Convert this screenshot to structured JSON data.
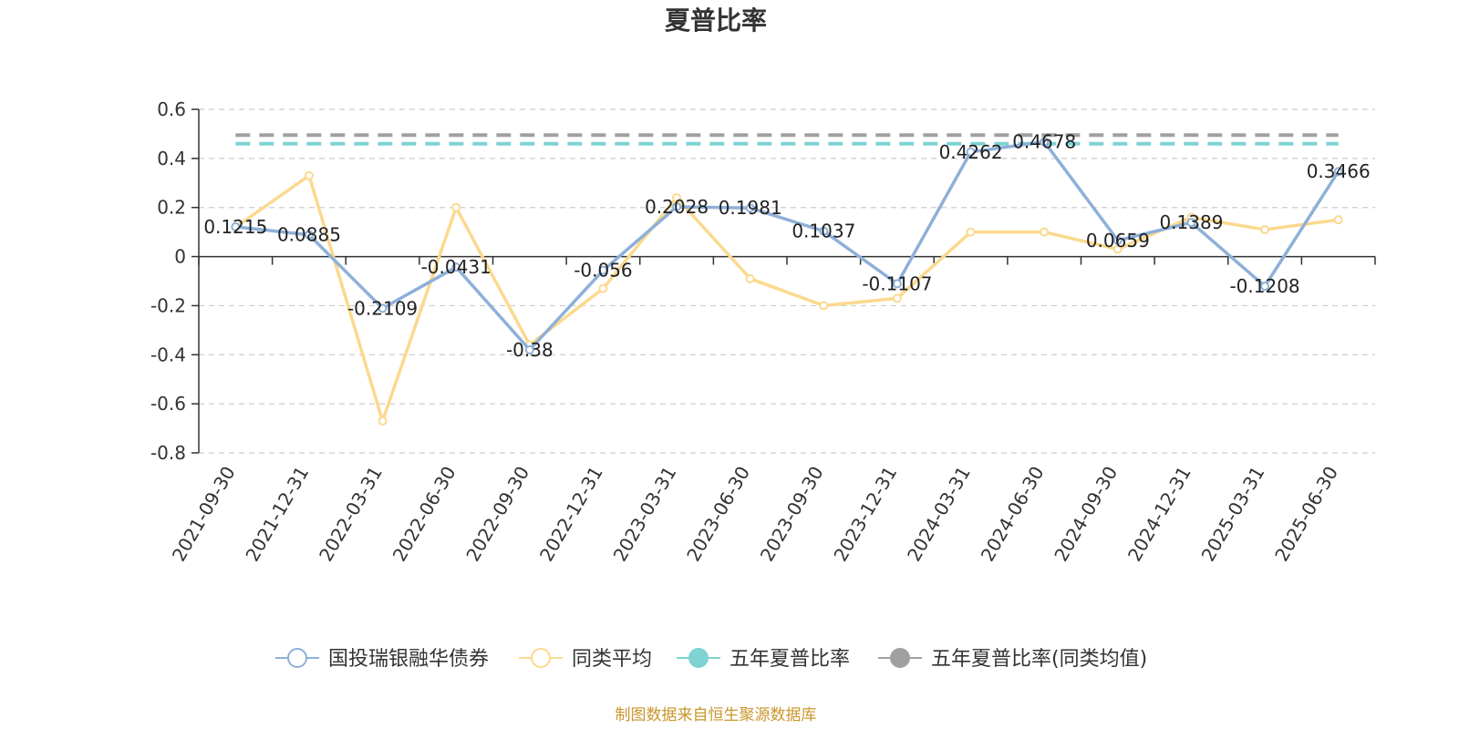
{
  "chart_data": {
    "type": "line",
    "title": "夏普比率",
    "xlabel": "",
    "ylabel": "",
    "ylim": [
      -0.8,
      0.6
    ],
    "yticks": [
      0.6,
      0.4,
      0.2,
      0,
      -0.2,
      -0.4,
      -0.6,
      -0.8
    ],
    "ytick_labels": [
      "0.6",
      "0.4",
      "0.2",
      "0",
      "-0.2",
      "-0.4",
      "-0.6",
      "-0.8"
    ],
    "grid": true,
    "legend_position": "bottom",
    "categories": [
      "2021-09-30",
      "2021-12-31",
      "2022-03-31",
      "2022-06-30",
      "2022-09-30",
      "2022-12-31",
      "2023-03-31",
      "2023-06-30",
      "2023-09-30",
      "2023-12-31",
      "2024-03-31",
      "2024-06-30",
      "2024-09-30",
      "2024-12-31",
      "2025-03-31",
      "2025-06-30"
    ],
    "series": [
      {
        "name": "国投瑞银融华债券",
        "color": "#8eb0d9",
        "values": [
          0.1215,
          0.0885,
          -0.2109,
          -0.0431,
          -0.38,
          -0.056,
          0.2028,
          0.1981,
          0.1037,
          -0.1107,
          0.4262,
          0.4678,
          0.0659,
          0.1389,
          -0.1208,
          0.3466
        ],
        "labels": [
          "0.1215",
          "0.0885",
          "-0.2109",
          "-0.0431",
          "-0.38",
          "-0.056",
          "0.2028",
          "0.1981",
          "0.1037",
          "-0.1107",
          "0.4262",
          "0.4678",
          "0.0659",
          "0.1389",
          "-0.1208",
          "0.3466"
        ]
      },
      {
        "name": "同类平均",
        "color": "#fbd98e",
        "values": [
          0.12,
          0.33,
          -0.67,
          0.2,
          -0.36,
          -0.13,
          0.24,
          -0.09,
          -0.2,
          -0.17,
          0.1,
          0.1,
          0.03,
          0.16,
          0.11,
          0.15
        ]
      }
    ],
    "reference_lines": [
      {
        "name": "五年夏普比率",
        "color": "#7fd3d3",
        "value": 0.46
      },
      {
        "name": "五年夏普比率(同类均值)",
        "color": "#a0a0a0",
        "value": 0.495
      }
    ],
    "source": "制图数据来自恒生聚源数据库"
  }
}
